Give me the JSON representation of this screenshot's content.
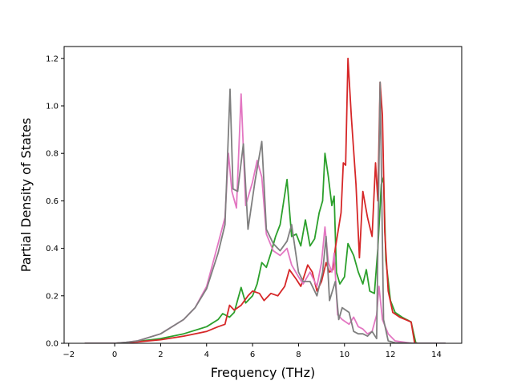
{
  "chart_data": {
    "type": "line",
    "title": "",
    "xlabel": "Frequency (THz)",
    "ylabel": "Partial Density of States",
    "xlim": [
      -2.2,
      15.1
    ],
    "ylim": [
      0.0,
      1.25
    ],
    "grid": false,
    "legend": "none",
    "x_ticks": [
      {
        "value": -2,
        "label": "−2"
      },
      {
        "value": 0,
        "label": "0"
      },
      {
        "value": 2,
        "label": "2"
      },
      {
        "value": 4,
        "label": "4"
      },
      {
        "value": 6,
        "label": "6"
      },
      {
        "value": 8,
        "label": "8"
      },
      {
        "value": 10,
        "label": "10"
      },
      {
        "value": 12,
        "label": "12"
      },
      {
        "value": 14,
        "label": "14"
      }
    ],
    "y_ticks": [
      {
        "value": 0.0,
        "label": "0.0"
      },
      {
        "value": 0.2,
        "label": "0.2"
      },
      {
        "value": 0.4,
        "label": "0.4"
      },
      {
        "value": 0.6,
        "label": "0.6"
      },
      {
        "value": 0.8,
        "label": "0.8"
      },
      {
        "value": 1.0,
        "label": "1.0"
      },
      {
        "value": 1.2,
        "label": "1.2"
      }
    ],
    "series": [
      {
        "color": "#2ca02c",
        "points": [
          [
            -1.3,
            0
          ],
          [
            0,
            0
          ],
          [
            0.5,
            0.003
          ],
          [
            1,
            0.008
          ],
          [
            2,
            0.02
          ],
          [
            3,
            0.04
          ],
          [
            4,
            0.07
          ],
          [
            4.5,
            0.1
          ],
          [
            4.7,
            0.125
          ],
          [
            5,
            0.11
          ],
          [
            5.2,
            0.13
          ],
          [
            5.5,
            0.235
          ],
          [
            5.7,
            0.17
          ],
          [
            6,
            0.2
          ],
          [
            6.2,
            0.25
          ],
          [
            6.4,
            0.34
          ],
          [
            6.6,
            0.32
          ],
          [
            6.8,
            0.38
          ],
          [
            7,
            0.45
          ],
          [
            7.2,
            0.5
          ],
          [
            7.5,
            0.69
          ],
          [
            7.7,
            0.45
          ],
          [
            7.9,
            0.46
          ],
          [
            8.1,
            0.41
          ],
          [
            8.3,
            0.52
          ],
          [
            8.5,
            0.41
          ],
          [
            8.7,
            0.44
          ],
          [
            8.9,
            0.55
          ],
          [
            9.05,
            0.6
          ],
          [
            9.15,
            0.8
          ],
          [
            9.3,
            0.7
          ],
          [
            9.45,
            0.58
          ],
          [
            9.55,
            0.62
          ],
          [
            9.65,
            0.3
          ],
          [
            9.8,
            0.25
          ],
          [
            10,
            0.28
          ],
          [
            10.15,
            0.42
          ],
          [
            10.4,
            0.37
          ],
          [
            10.6,
            0.3
          ],
          [
            10.8,
            0.25
          ],
          [
            10.95,
            0.31
          ],
          [
            11.1,
            0.22
          ],
          [
            11.3,
            0.21
          ],
          [
            11.45,
            0.4
          ],
          [
            11.6,
            0.67
          ],
          [
            11.7,
            0.7
          ],
          [
            11.8,
            0.35
          ],
          [
            12,
            0.18
          ],
          [
            12.2,
            0.13
          ],
          [
            12.5,
            0.11
          ],
          [
            12.9,
            0.09
          ],
          [
            13.1,
            0.002
          ],
          [
            13.2,
            0
          ]
        ]
      },
      {
        "color": "#d62728",
        "points": [
          [
            -1.3,
            0
          ],
          [
            0,
            0
          ],
          [
            0.5,
            0.003
          ],
          [
            1,
            0.006
          ],
          [
            2,
            0.015
          ],
          [
            3,
            0.03
          ],
          [
            4,
            0.05
          ],
          [
            4.5,
            0.07
          ],
          [
            4.8,
            0.08
          ],
          [
            5,
            0.16
          ],
          [
            5.2,
            0.14
          ],
          [
            5.5,
            0.16
          ],
          [
            5.8,
            0.2
          ],
          [
            6,
            0.22
          ],
          [
            6.3,
            0.21
          ],
          [
            6.5,
            0.18
          ],
          [
            6.8,
            0.21
          ],
          [
            7.1,
            0.2
          ],
          [
            7.4,
            0.24
          ],
          [
            7.6,
            0.31
          ],
          [
            7.9,
            0.27
          ],
          [
            8.1,
            0.24
          ],
          [
            8.4,
            0.33
          ],
          [
            8.6,
            0.3
          ],
          [
            8.8,
            0.22
          ],
          [
            9,
            0.26
          ],
          [
            9.2,
            0.34
          ],
          [
            9.35,
            0.3
          ],
          [
            9.5,
            0.31
          ],
          [
            9.6,
            0.4
          ],
          [
            9.85,
            0.55
          ],
          [
            9.95,
            0.76
          ],
          [
            10.05,
            0.75
          ],
          [
            10.15,
            1.2
          ],
          [
            10.3,
            0.95
          ],
          [
            10.5,
            0.67
          ],
          [
            10.65,
            0.36
          ],
          [
            10.8,
            0.64
          ],
          [
            11,
            0.53
          ],
          [
            11.2,
            0.45
          ],
          [
            11.35,
            0.76
          ],
          [
            11.45,
            0.6
          ],
          [
            11.55,
            1.1
          ],
          [
            11.65,
            0.96
          ],
          [
            11.75,
            0.47
          ],
          [
            11.9,
            0.22
          ],
          [
            12.1,
            0.13
          ],
          [
            12.4,
            0.11
          ],
          [
            12.9,
            0.09
          ],
          [
            13.05,
            0.002
          ],
          [
            13.2,
            0
          ]
        ]
      },
      {
        "color": "#e377c2",
        "points": [
          [
            -1.3,
            0
          ],
          [
            0,
            0
          ],
          [
            0.5,
            0.004
          ],
          [
            1,
            0.01
          ],
          [
            2,
            0.04
          ],
          [
            3,
            0.1
          ],
          [
            3.5,
            0.15
          ],
          [
            4,
            0.24
          ],
          [
            4.5,
            0.42
          ],
          [
            4.8,
            0.53
          ],
          [
            4.95,
            0.8
          ],
          [
            5.1,
            0.64
          ],
          [
            5.3,
            0.57
          ],
          [
            5.5,
            1.05
          ],
          [
            5.7,
            0.58
          ],
          [
            6,
            0.68
          ],
          [
            6.2,
            0.77
          ],
          [
            6.4,
            0.7
          ],
          [
            6.6,
            0.46
          ],
          [
            6.9,
            0.39
          ],
          [
            7.2,
            0.37
          ],
          [
            7.5,
            0.4
          ],
          [
            7.7,
            0.33
          ],
          [
            8,
            0.28
          ],
          [
            8.2,
            0.25
          ],
          [
            8.5,
            0.3
          ],
          [
            8.8,
            0.24
          ],
          [
            9,
            0.34
          ],
          [
            9.15,
            0.49
          ],
          [
            9.3,
            0.34
          ],
          [
            9.45,
            0.3
          ],
          [
            9.55,
            0.38
          ],
          [
            9.7,
            0.12
          ],
          [
            9.9,
            0.1
          ],
          [
            10.2,
            0.08
          ],
          [
            10.4,
            0.11
          ],
          [
            10.6,
            0.07
          ],
          [
            10.8,
            0.06
          ],
          [
            11,
            0.04
          ],
          [
            11.2,
            0.05
          ],
          [
            11.4,
            0.12
          ],
          [
            11.5,
            0.24
          ],
          [
            11.65,
            0.1
          ],
          [
            11.9,
            0.04
          ],
          [
            12.2,
            0.01
          ],
          [
            12.8,
            0.002
          ],
          [
            13,
            0
          ],
          [
            14.4,
            0
          ]
        ]
      },
      {
        "color": "#7f7f7f",
        "points": [
          [
            -1.3,
            0
          ],
          [
            0,
            0
          ],
          [
            0.5,
            0.004
          ],
          [
            1,
            0.01
          ],
          [
            2,
            0.04
          ],
          [
            3,
            0.1
          ],
          [
            3.5,
            0.15
          ],
          [
            4,
            0.23
          ],
          [
            4.5,
            0.38
          ],
          [
            4.8,
            0.5
          ],
          [
            5.02,
            1.07
          ],
          [
            5.15,
            0.65
          ],
          [
            5.35,
            0.64
          ],
          [
            5.6,
            0.84
          ],
          [
            5.8,
            0.48
          ],
          [
            6.1,
            0.68
          ],
          [
            6.4,
            0.85
          ],
          [
            6.6,
            0.48
          ],
          [
            6.9,
            0.42
          ],
          [
            7.2,
            0.39
          ],
          [
            7.5,
            0.43
          ],
          [
            7.7,
            0.5
          ],
          [
            8,
            0.3
          ],
          [
            8.2,
            0.26
          ],
          [
            8.5,
            0.26
          ],
          [
            8.8,
            0.2
          ],
          [
            9.05,
            0.3
          ],
          [
            9.2,
            0.45
          ],
          [
            9.35,
            0.18
          ],
          [
            9.6,
            0.26
          ],
          [
            9.75,
            0.1
          ],
          [
            9.9,
            0.15
          ],
          [
            10.2,
            0.13
          ],
          [
            10.4,
            0.05
          ],
          [
            10.6,
            0.04
          ],
          [
            10.8,
            0.04
          ],
          [
            11,
            0.03
          ],
          [
            11.2,
            0.05
          ],
          [
            11.4,
            0.02
          ],
          [
            11.55,
            1.1
          ],
          [
            11.7,
            0.1
          ],
          [
            11.9,
            0.01
          ],
          [
            12.2,
            0.002
          ],
          [
            13,
            0
          ],
          [
            14.4,
            0
          ]
        ]
      }
    ]
  }
}
